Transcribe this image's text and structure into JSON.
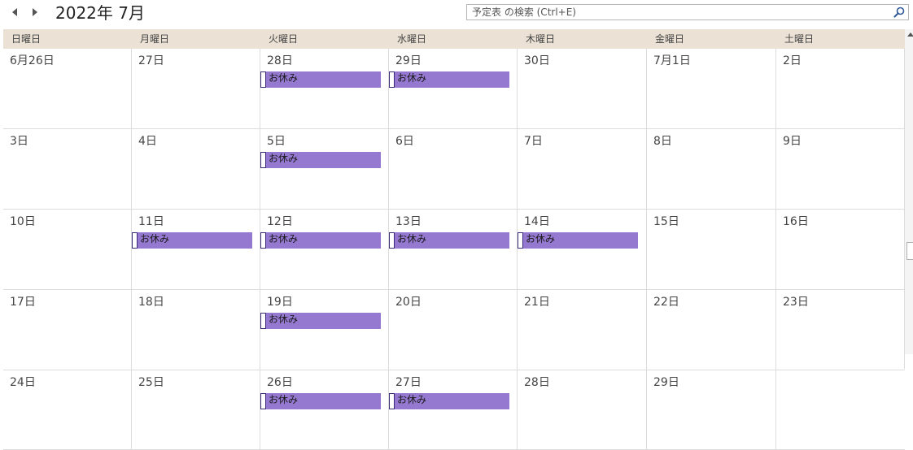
{
  "header": {
    "prev_icon": "chevron-left-icon",
    "next_icon": "chevron-right-icon",
    "month_title": "2022年 7月"
  },
  "search": {
    "placeholder": "予定表 の検索 (Ctrl+E)",
    "value": "",
    "icon": "search-icon"
  },
  "weekdays": [
    "日曜日",
    "月曜日",
    "火曜日",
    "水曜日",
    "木曜日",
    "金曜日",
    "土曜日"
  ],
  "event_color": "#9579d0",
  "weeks": [
    {
      "days": [
        {
          "label": "6月26日",
          "events": []
        },
        {
          "label": "27日",
          "events": []
        },
        {
          "label": "28日",
          "events": [
            "お休み"
          ]
        },
        {
          "label": "29日",
          "events": [
            "お休み"
          ]
        },
        {
          "label": "30日",
          "events": []
        },
        {
          "label": "7月1日",
          "events": []
        },
        {
          "label": "2日",
          "events": []
        }
      ]
    },
    {
      "days": [
        {
          "label": "3日",
          "events": []
        },
        {
          "label": "4日",
          "events": []
        },
        {
          "label": "5日",
          "events": [
            "お休み"
          ]
        },
        {
          "label": "6日",
          "events": []
        },
        {
          "label": "7日",
          "events": []
        },
        {
          "label": "8日",
          "events": []
        },
        {
          "label": "9日",
          "events": []
        }
      ]
    },
    {
      "days": [
        {
          "label": "10日",
          "events": []
        },
        {
          "label": "11日",
          "events": [
            "お休み"
          ]
        },
        {
          "label": "12日",
          "events": [
            "お休み"
          ]
        },
        {
          "label": "13日",
          "events": [
            "お休み"
          ]
        },
        {
          "label": "14日",
          "events": [
            "お休み"
          ]
        },
        {
          "label": "15日",
          "events": []
        },
        {
          "label": "16日",
          "events": []
        }
      ]
    },
    {
      "days": [
        {
          "label": "17日",
          "events": []
        },
        {
          "label": "18日",
          "events": []
        },
        {
          "label": "19日",
          "events": [
            "お休み"
          ]
        },
        {
          "label": "20日",
          "events": []
        },
        {
          "label": "21日",
          "events": []
        },
        {
          "label": "22日",
          "events": []
        },
        {
          "label": "23日",
          "events": []
        }
      ]
    },
    {
      "days": [
        {
          "label": "24日",
          "events": []
        },
        {
          "label": "25日",
          "events": []
        },
        {
          "label": "26日",
          "events": [
            "お休み"
          ]
        },
        {
          "label": "27日",
          "events": [
            "お休み"
          ]
        },
        {
          "label": "28日",
          "events": []
        },
        {
          "label": "29日",
          "events": []
        },
        {
          "label": "",
          "events": []
        }
      ]
    }
  ]
}
